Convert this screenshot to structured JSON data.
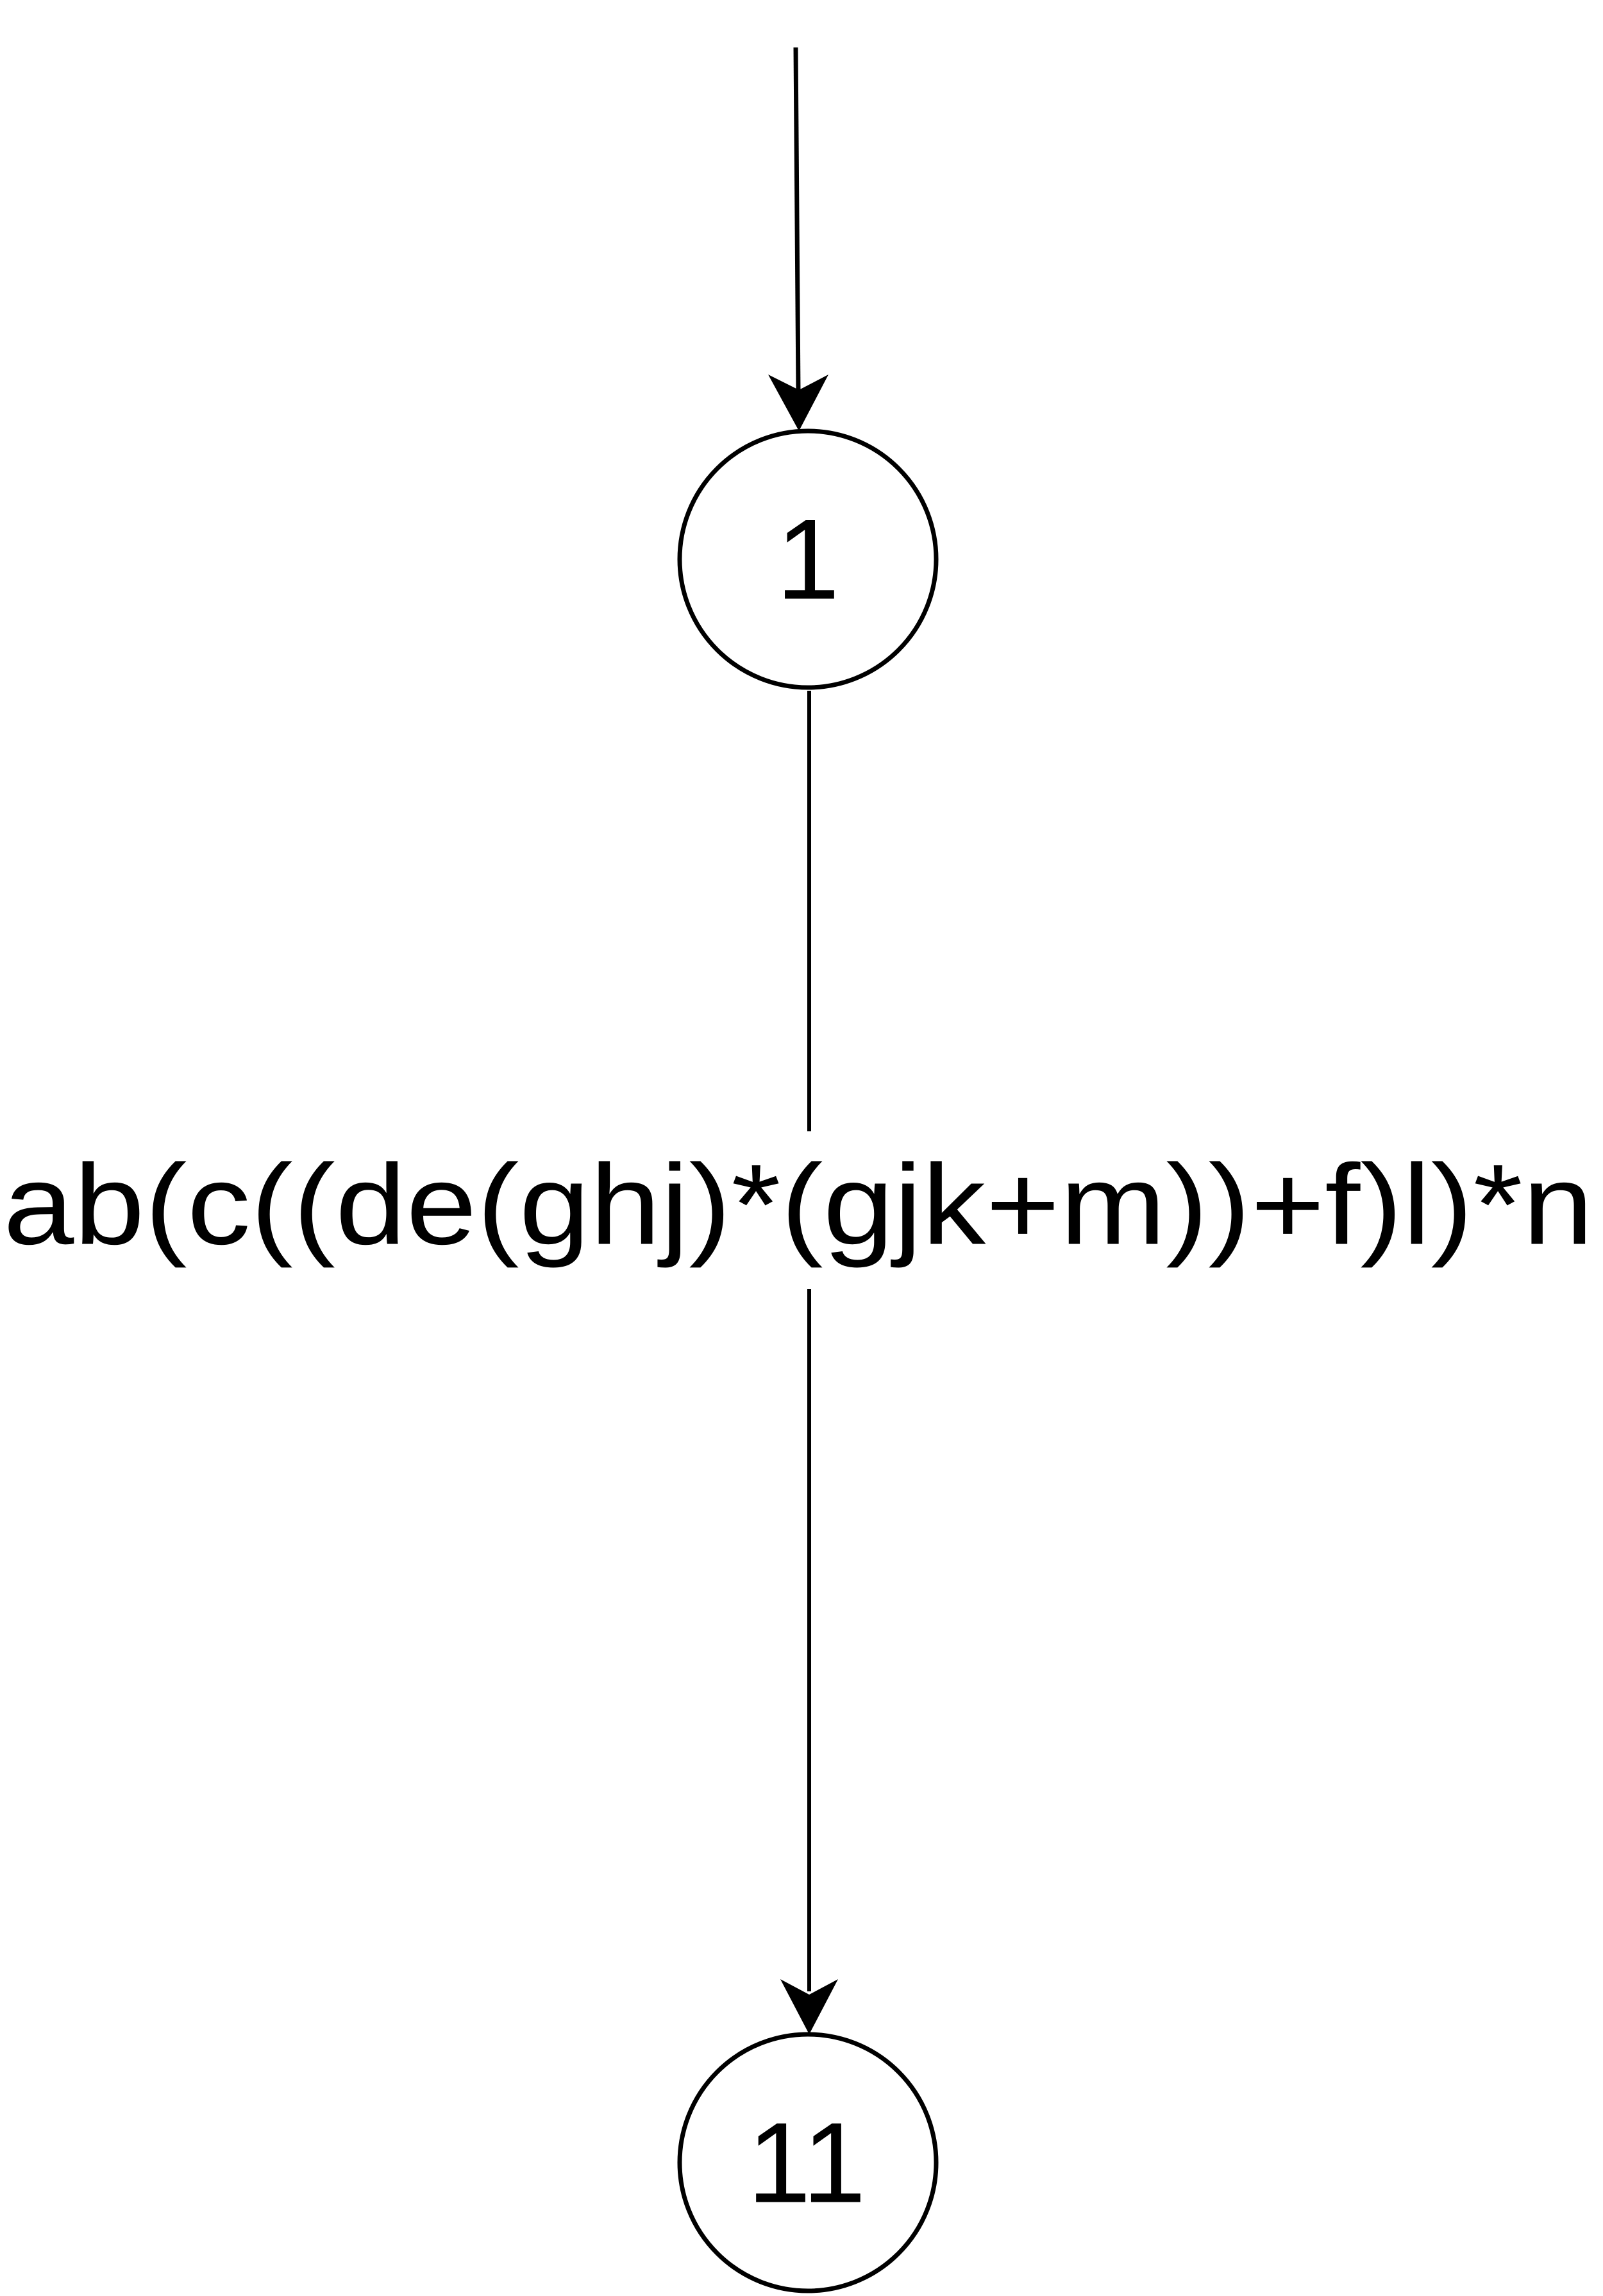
{
  "diagram": {
    "nodes": [
      {
        "id": "1",
        "label": "1"
      },
      {
        "id": "11",
        "label": "11"
      }
    ],
    "edges": [
      {
        "from": "start",
        "to": "1",
        "label": ""
      },
      {
        "from": "1",
        "to": "11",
        "label": "ab(c((de(ghj)*(gjk+m))+f)l)*n"
      }
    ],
    "colors": {
      "stroke": "#000000",
      "background": "#ffffff"
    }
  }
}
